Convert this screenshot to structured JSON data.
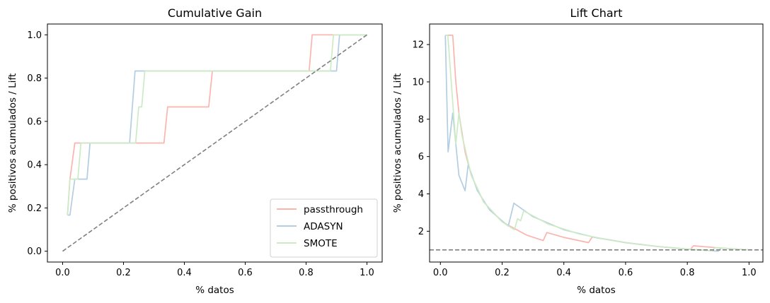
{
  "chart_data": [
    {
      "type": "line",
      "title": "Cumulative Gain",
      "xlabel": "% datos",
      "ylabel": "% positivos acumulados / Lift",
      "xlim": [
        -0.05,
        1.05
      ],
      "ylim": [
        -0.05,
        1.05
      ],
      "xticks": [
        "0.0",
        "0.2",
        "0.4",
        "0.6",
        "0.8",
        "1.0"
      ],
      "yticks": [
        "0.0",
        "0.2",
        "0.4",
        "0.6",
        "0.8",
        "1.0"
      ],
      "legend": {
        "position": "lower-right"
      },
      "series": [
        {
          "name": "passthrough",
          "color": "#fbb4ae",
          "x": [
            0.016,
            0.024,
            0.04,
            0.05,
            0.333,
            0.345,
            0.48,
            0.492,
            0.81,
            0.82,
            1.0
          ],
          "y": [
            0.167,
            0.333,
            0.5,
            0.5,
            0.5,
            0.667,
            0.667,
            0.833,
            0.833,
            1.0,
            1.0
          ]
        },
        {
          "name": "ADASYN",
          "color": "#b3cde3",
          "x": [
            0.016,
            0.024,
            0.04,
            0.08,
            0.09,
            0.22,
            0.238,
            0.9,
            0.91,
            1.0
          ],
          "y": [
            0.167,
            0.167,
            0.333,
            0.333,
            0.5,
            0.5,
            0.833,
            0.833,
            1.0,
            1.0
          ]
        },
        {
          "name": "SMOTE",
          "color": "#ccebc5",
          "x": [
            0.016,
            0.024,
            0.05,
            0.06,
            0.24,
            0.25,
            0.26,
            0.27,
            0.88,
            0.89,
            1.0
          ],
          "y": [
            0.167,
            0.333,
            0.333,
            0.5,
            0.5,
            0.667,
            0.667,
            0.833,
            0.833,
            1.0,
            1.0
          ]
        },
        {
          "name": "",
          "color": "#808080",
          "dashed": true,
          "x": [
            0.0,
            1.0
          ],
          "y": [
            0.0,
            1.0
          ]
        }
      ]
    },
    {
      "type": "line",
      "title": "Lift Chart",
      "xlabel": "% datos",
      "ylabel": "% positivos acumulados / Lift",
      "xlim": [
        -0.035,
        1.045
      ],
      "ylim": [
        0.35,
        13.1
      ],
      "xticks": [
        "0.0",
        "0.2",
        "0.4",
        "0.6",
        "0.8",
        "1.0"
      ],
      "yticks": [
        "2",
        "4",
        "6",
        "8",
        "10",
        "12"
      ],
      "series": [
        {
          "name": "passthrough",
          "color": "#fbb4ae",
          "x": [
            0.016,
            0.04,
            0.05,
            0.06,
            0.08,
            0.1,
            0.14,
            0.2,
            0.28,
            0.333,
            0.345,
            0.4,
            0.48,
            0.492,
            0.6,
            0.7,
            0.81,
            0.82,
            0.9,
            1.0
          ],
          "y": [
            12.5,
            12.5,
            10.0,
            8.33,
            6.25,
            5.0,
            3.57,
            2.5,
            1.79,
            1.5,
            1.93,
            1.67,
            1.39,
            1.69,
            1.39,
            1.19,
            1.03,
            1.22,
            1.11,
            1.0
          ]
        },
        {
          "name": "ADASYN",
          "color": "#b3cde3",
          "x": [
            0.016,
            0.025,
            0.04,
            0.05,
            0.06,
            0.08,
            0.09,
            0.12,
            0.16,
            0.22,
            0.238,
            0.3,
            0.4,
            0.5,
            0.6,
            0.7,
            0.8,
            0.9,
            0.91,
            1.0
          ],
          "y": [
            12.5,
            6.25,
            8.33,
            6.67,
            5.0,
            4.17,
            5.56,
            4.17,
            3.13,
            2.27,
            3.5,
            2.78,
            2.08,
            1.67,
            1.39,
            1.19,
            1.04,
            0.93,
            1.1,
            1.0
          ]
        },
        {
          "name": "SMOTE",
          "color": "#ccebc5",
          "x": [
            0.016,
            0.024,
            0.05,
            0.06,
            0.07,
            0.1,
            0.14,
            0.2,
            0.24,
            0.25,
            0.26,
            0.27,
            0.35,
            0.45,
            0.55,
            0.65,
            0.75,
            0.88,
            0.89,
            1.0
          ],
          "y": [
            12.5,
            12.5,
            6.67,
            8.33,
            7.14,
            5.0,
            3.57,
            2.5,
            2.08,
            2.67,
            2.56,
            3.09,
            2.38,
            1.85,
            1.52,
            1.28,
            1.11,
            0.95,
            1.12,
            1.0
          ]
        },
        {
          "name": "",
          "color": "#808080",
          "dashed": true,
          "x": [
            -0.035,
            1.045
          ],
          "y": [
            1.0,
            1.0
          ]
        }
      ]
    }
  ]
}
